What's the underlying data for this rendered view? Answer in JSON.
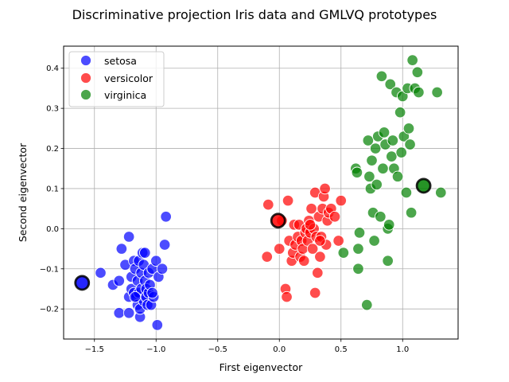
{
  "chart_data": {
    "type": "scatter",
    "title": "Discriminative projection Iris data and GMLVQ prototypes",
    "xlabel": "First eigenvector",
    "ylabel": "Second eigenvector",
    "xlim": [
      -1.75,
      1.45
    ],
    "ylim": [
      -0.275,
      0.455
    ],
    "xticks": [
      -1.5,
      -1.0,
      -0.5,
      0.0,
      0.5,
      1.0
    ],
    "xtick_labels": [
      "−1.5",
      "−1.0",
      "−0.5",
      "0.0",
      "0.5",
      "1.0"
    ],
    "yticks": [
      -0.2,
      -0.1,
      0.0,
      0.1,
      0.2,
      0.3,
      0.4
    ],
    "ytick_labels": [
      "−0.2",
      "−0.1",
      "0.0",
      "0.1",
      "0.2",
      "0.3",
      "0.4"
    ],
    "grid": true,
    "legend_position": "top-left",
    "series": [
      {
        "name": "setosa",
        "color": "#0000ff",
        "points": [
          [
            -1.45,
            -0.11
          ],
          [
            -1.35,
            -0.14
          ],
          [
            -1.3,
            -0.13
          ],
          [
            -1.3,
            -0.21
          ],
          [
            -1.28,
            -0.05
          ],
          [
            -1.25,
            -0.09
          ],
          [
            -1.22,
            -0.02
          ],
          [
            -1.22,
            -0.21
          ],
          [
            -1.22,
            -0.17
          ],
          [
            -1.2,
            -0.15
          ],
          [
            -1.2,
            -0.12
          ],
          [
            -1.18,
            -0.08
          ],
          [
            -1.18,
            -0.16
          ],
          [
            -1.17,
            -0.1
          ],
          [
            -1.16,
            -0.17
          ],
          [
            -1.15,
            -0.19
          ],
          [
            -1.15,
            -0.13
          ],
          [
            -1.14,
            -0.08
          ],
          [
            -1.14,
            -0.16
          ],
          [
            -1.13,
            -0.22
          ],
          [
            -1.13,
            -0.2
          ],
          [
            -1.12,
            -0.11
          ],
          [
            -1.12,
            -0.15
          ],
          [
            -1.11,
            -0.06
          ],
          [
            -1.1,
            -0.09
          ],
          [
            -1.1,
            -0.18
          ],
          [
            -1.09,
            -0.06
          ],
          [
            -1.09,
            -0.13
          ],
          [
            -1.08,
            -0.15
          ],
          [
            -1.08,
            -0.17
          ],
          [
            -1.07,
            -0.19
          ],
          [
            -1.06,
            -0.16
          ],
          [
            -1.06,
            -0.11
          ],
          [
            -1.05,
            -0.14
          ],
          [
            -1.04,
            -0.19
          ],
          [
            -1.03,
            -0.1
          ],
          [
            -1.02,
            -0.17
          ],
          [
            -1.0,
            -0.08
          ],
          [
            -0.99,
            -0.24
          ],
          [
            -0.98,
            -0.12
          ],
          [
            -0.95,
            -0.1
          ],
          [
            -0.93,
            -0.04
          ],
          [
            -0.92,
            0.03
          ],
          [
            -1.17,
            -0.17
          ],
          [
            -1.03,
            -0.16
          ]
        ]
      },
      {
        "name": "versicolor",
        "color": "#ff0000",
        "points": [
          [
            -0.1,
            -0.07
          ],
          [
            -0.09,
            0.06
          ],
          [
            0.0,
            -0.05
          ],
          [
            0.02,
            0.02
          ],
          [
            0.05,
            -0.15
          ],
          [
            0.06,
            -0.17
          ],
          [
            0.07,
            0.07
          ],
          [
            0.08,
            -0.03
          ],
          [
            0.1,
            -0.08
          ],
          [
            0.11,
            -0.06
          ],
          [
            0.12,
            0.01
          ],
          [
            0.13,
            -0.04
          ],
          [
            0.15,
            -0.02
          ],
          [
            0.16,
            0.01
          ],
          [
            0.17,
            -0.07
          ],
          [
            0.18,
            -0.03
          ],
          [
            0.19,
            -0.05
          ],
          [
            0.2,
            -0.08
          ],
          [
            0.21,
            -0.01
          ],
          [
            0.22,
            0.0
          ],
          [
            0.23,
            -0.03
          ],
          [
            0.24,
            0.02
          ],
          [
            0.25,
            -0.01
          ],
          [
            0.26,
            0.05
          ],
          [
            0.27,
            -0.05
          ],
          [
            0.28,
            0.0
          ],
          [
            0.29,
            0.09
          ],
          [
            0.3,
            -0.02
          ],
          [
            0.31,
            -0.11
          ],
          [
            0.32,
            0.03
          ],
          [
            0.33,
            -0.07
          ],
          [
            0.34,
            -0.02
          ],
          [
            0.35,
            0.05
          ],
          [
            0.36,
            0.08
          ],
          [
            0.37,
            0.1
          ],
          [
            0.38,
            -0.04
          ],
          [
            0.39,
            0.02
          ],
          [
            0.4,
            0.04
          ],
          [
            0.42,
            0.05
          ],
          [
            0.45,
            0.03
          ],
          [
            0.48,
            -0.03
          ],
          [
            0.5,
            0.07
          ],
          [
            0.29,
            -0.16
          ],
          [
            0.25,
            0.01
          ],
          [
            0.33,
            -0.03
          ]
        ]
      },
      {
        "name": "virginica",
        "color": "#008000",
        "points": [
          [
            0.52,
            -0.06
          ],
          [
            0.62,
            0.15
          ],
          [
            0.63,
            0.14
          ],
          [
            0.64,
            -0.05
          ],
          [
            0.64,
            -0.1
          ],
          [
            0.65,
            -0.01
          ],
          [
            0.71,
            -0.19
          ],
          [
            0.72,
            0.22
          ],
          [
            0.73,
            0.13
          ],
          [
            0.74,
            0.1
          ],
          [
            0.75,
            0.17
          ],
          [
            0.76,
            0.04
          ],
          [
            0.77,
            -0.03
          ],
          [
            0.78,
            0.2
          ],
          [
            0.79,
            0.11
          ],
          [
            0.8,
            0.23
          ],
          [
            0.82,
            0.03
          ],
          [
            0.83,
            0.38
          ],
          [
            0.84,
            0.15
          ],
          [
            0.85,
            0.24
          ],
          [
            0.86,
            0.21
          ],
          [
            0.88,
            0.0
          ],
          [
            0.88,
            -0.08
          ],
          [
            0.89,
            0.01
          ],
          [
            0.9,
            0.36
          ],
          [
            0.91,
            0.18
          ],
          [
            0.92,
            0.22
          ],
          [
            0.93,
            0.15
          ],
          [
            0.95,
            0.34
          ],
          [
            0.96,
            0.13
          ],
          [
            0.98,
            0.29
          ],
          [
            0.99,
            0.19
          ],
          [
            1.0,
            0.33
          ],
          [
            1.01,
            0.23
          ],
          [
            1.03,
            0.09
          ],
          [
            1.04,
            0.35
          ],
          [
            1.05,
            0.25
          ],
          [
            1.06,
            0.21
          ],
          [
            1.07,
            0.04
          ],
          [
            1.08,
            0.42
          ],
          [
            1.1,
            0.35
          ],
          [
            1.12,
            0.39
          ],
          [
            1.13,
            0.34
          ],
          [
            1.28,
            0.34
          ],
          [
            1.31,
            0.09
          ]
        ]
      }
    ],
    "prototypes": [
      {
        "class": "setosa",
        "color": "#0000ff",
        "x": -1.6,
        "y": -0.135
      },
      {
        "class": "versicolor",
        "color": "#ff0000",
        "x": -0.01,
        "y": 0.02
      },
      {
        "class": "virginica",
        "color": "#008000",
        "x": 1.17,
        "y": 0.107
      }
    ]
  }
}
